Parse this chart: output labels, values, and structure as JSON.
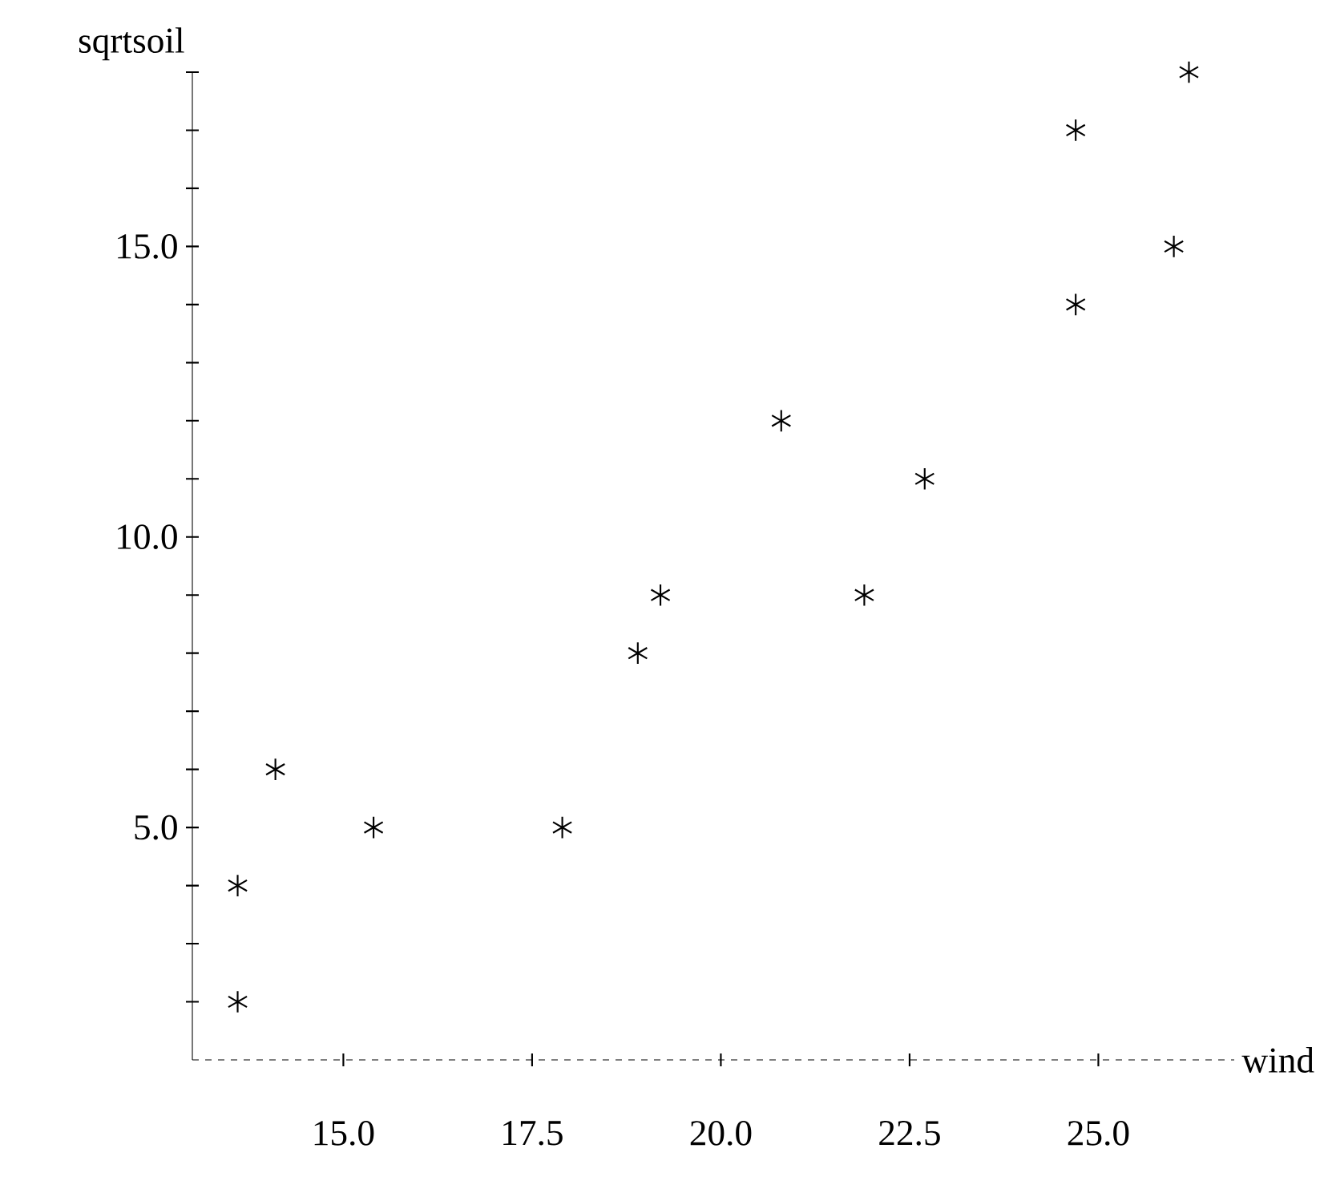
{
  "chart_data": {
    "type": "scatter",
    "xlabel": "wind",
    "ylabel": "sqrtsoil",
    "x": [
      13.6,
      13.6,
      15.4,
      17.9,
      14.1,
      18.9,
      19.2,
      21.9,
      22.7,
      20.8,
      24.7,
      26.0,
      24.7,
      26.2
    ],
    "values": [
      2,
      4,
      5,
      5,
      6,
      8,
      9,
      9,
      11,
      12,
      14,
      15,
      17,
      18
    ],
    "color": "#000000",
    "marker": "cross",
    "xlim": [
      13,
      26.8
    ],
    "ylim": [
      1,
      18
    ],
    "xticks": [
      {
        "value": 15,
        "label": "15.0"
      },
      {
        "value": 17.5,
        "label": "17.5"
      },
      {
        "value": 20,
        "label": "20.0"
      },
      {
        "value": 22.5,
        "label": "22.5"
      },
      {
        "value": 25,
        "label": "25.0"
      }
    ],
    "yticks": [
      {
        "value": 2,
        "label": null
      },
      {
        "value": 3,
        "label": null
      },
      {
        "value": 4,
        "label": null
      },
      {
        "value": 5,
        "label": "5.0"
      },
      {
        "value": 6,
        "label": null
      },
      {
        "value": 7,
        "label": null
      },
      {
        "value": 8,
        "label": null
      },
      {
        "value": 9,
        "label": null
      },
      {
        "value": 10,
        "label": "10.0"
      },
      {
        "value": 11,
        "label": null
      },
      {
        "value": 12,
        "label": null
      },
      {
        "value": 13,
        "label": null
      },
      {
        "value": 14,
        "label": null
      },
      {
        "value": 15,
        "label": "15.0"
      },
      {
        "value": 16,
        "label": null
      },
      {
        "value": 17,
        "label": null
      },
      {
        "value": 18,
        "label": null
      }
    ]
  }
}
